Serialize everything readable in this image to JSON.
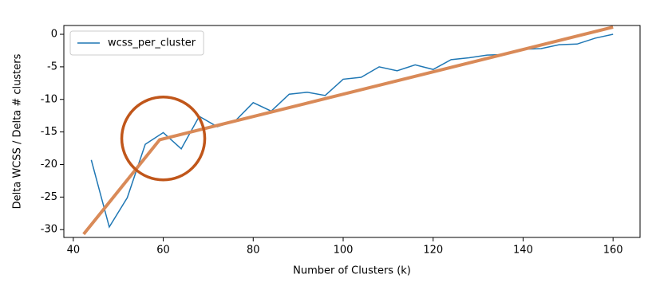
{
  "chart_data": {
    "type": "line",
    "xlabel": "Number of Clusters (k)",
    "ylabel": "Delta WCSS / Delta # clusters",
    "xlim": [
      37.9,
      166
    ],
    "xticks": [
      40,
      60,
      80,
      100,
      120,
      140,
      160
    ],
    "ylim": [
      -31.2,
      1.35
    ],
    "yticks": [
      0,
      -5,
      -10,
      -15,
      -20,
      -25,
      -30
    ],
    "legend": "upper left",
    "series": [
      {
        "name": "wcss_per_cluster",
        "color": "#1f77b4",
        "x": [
          44,
          48,
          52,
          56,
          60,
          64,
          68,
          72,
          76,
          80,
          84,
          88,
          92,
          96,
          100,
          104,
          108,
          112,
          116,
          120,
          124,
          128,
          132,
          136,
          140,
          144,
          148,
          152,
          156,
          160
        ],
        "values": [
          -19.3,
          -29.6,
          -25.1,
          -16.9,
          -15.1,
          -17.6,
          -12.6,
          -14.2,
          -13.3,
          -10.5,
          -11.8,
          -9.2,
          -8.9,
          -9.4,
          -6.9,
          -6.6,
          -5.0,
          -5.6,
          -4.7,
          -5.4,
          -3.9,
          -3.6,
          -3.2,
          -3.1,
          -2.3,
          -2.2,
          -1.6,
          -1.5,
          -0.6,
          0
        ]
      },
      {
        "color": "#d98a58",
        "x": [
          42.3,
          59.2,
          160
        ],
        "values": [
          -30.7,
          -16.2,
          1.1
        ]
      }
    ]
  }
}
